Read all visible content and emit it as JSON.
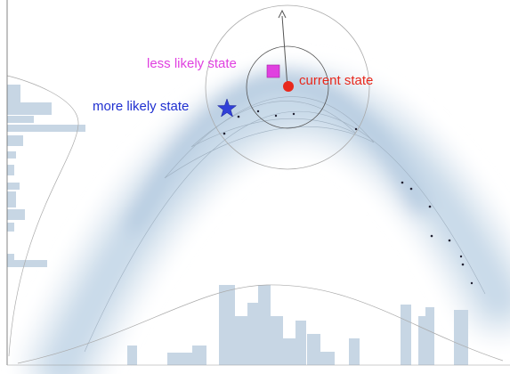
{
  "labels": {
    "less_likely": "less likely state",
    "current": "current state",
    "more_likely": "more likely state"
  }
}
